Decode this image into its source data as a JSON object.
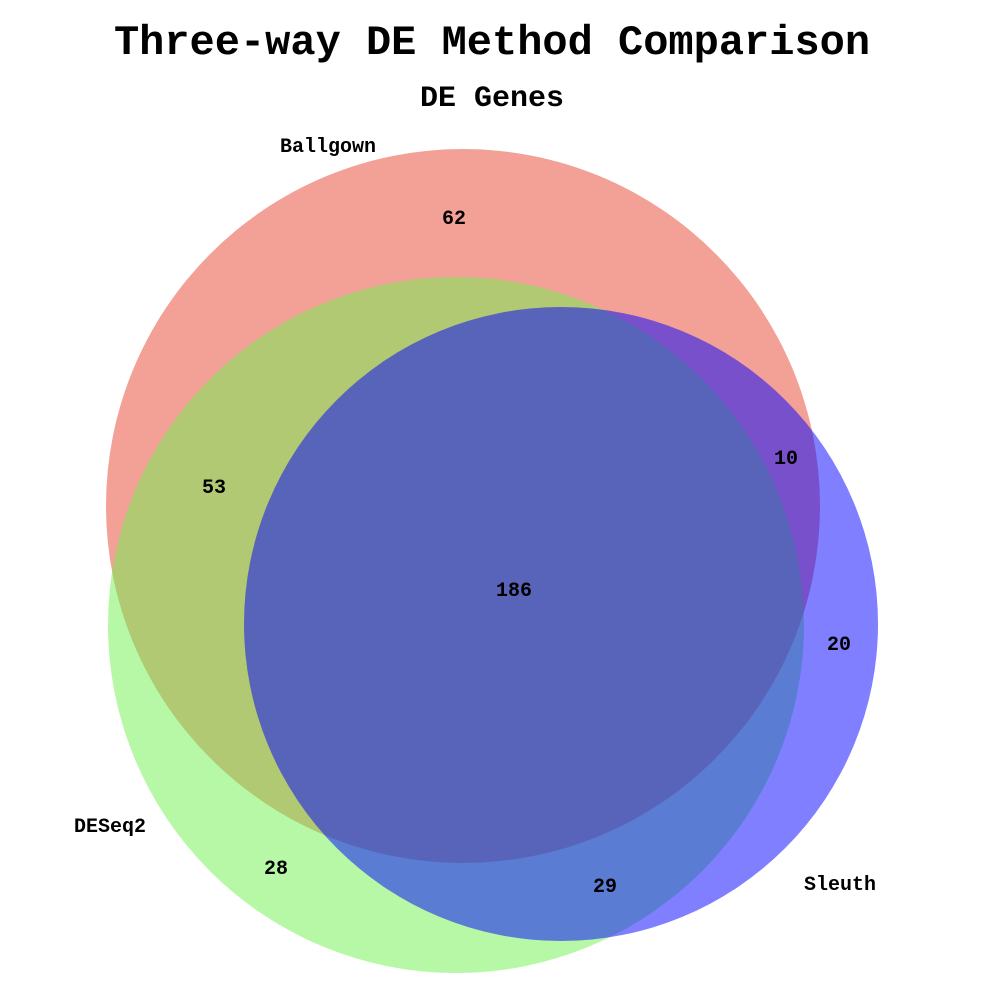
{
  "title": "Three-way DE Method Comparison",
  "subtitle": "DE Genes",
  "sets": [
    {
      "key": "ballgown",
      "name": "Ballgown",
      "color": "#e8412f"
    },
    {
      "key": "deseq2",
      "name": "DESeq2",
      "color": "#70f250"
    },
    {
      "key": "sleuth",
      "name": "Sleuth",
      "color": "#0000ff"
    }
  ],
  "regions": {
    "ballgown_only": "62",
    "deseq2_only": "28",
    "sleuth_only": "20",
    "ballgown_deseq2": "53",
    "ballgown_sleuth": "10",
    "deseq2_sleuth": "29",
    "all_three": "186"
  }
}
